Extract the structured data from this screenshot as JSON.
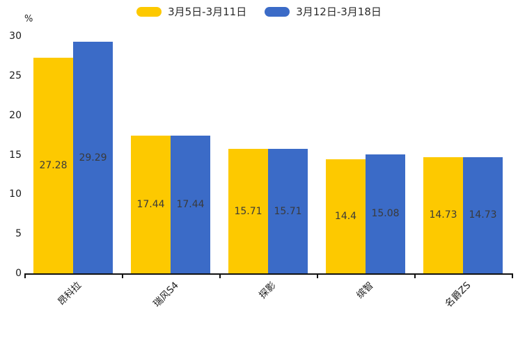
{
  "chart_data": {
    "type": "bar",
    "title": "",
    "xlabel": "",
    "ylabel": "%",
    "ylim": [
      0,
      30
    ],
    "yticks": [
      0,
      5,
      10,
      15,
      20,
      25,
      30
    ],
    "grid": false,
    "legend_position": "top-center",
    "value_labels": true,
    "categories": [
      "昂科拉",
      "瑞风S4",
      "探影",
      "缤智",
      "名爵ZS"
    ],
    "series": [
      {
        "name": "3月5日-3月11日",
        "color": "#FDC900",
        "values": [
          27.28,
          17.44,
          15.71,
          14.4,
          14.73
        ]
      },
      {
        "name": "3月12日-3月18日",
        "color": "#3B6BC7",
        "values": [
          29.29,
          17.44,
          15.71,
          15.08,
          14.73
        ]
      }
    ],
    "value_label_color": "#3a3a3a",
    "axis_color": "#111111",
    "tick_label_color": "#1a1a1a"
  }
}
